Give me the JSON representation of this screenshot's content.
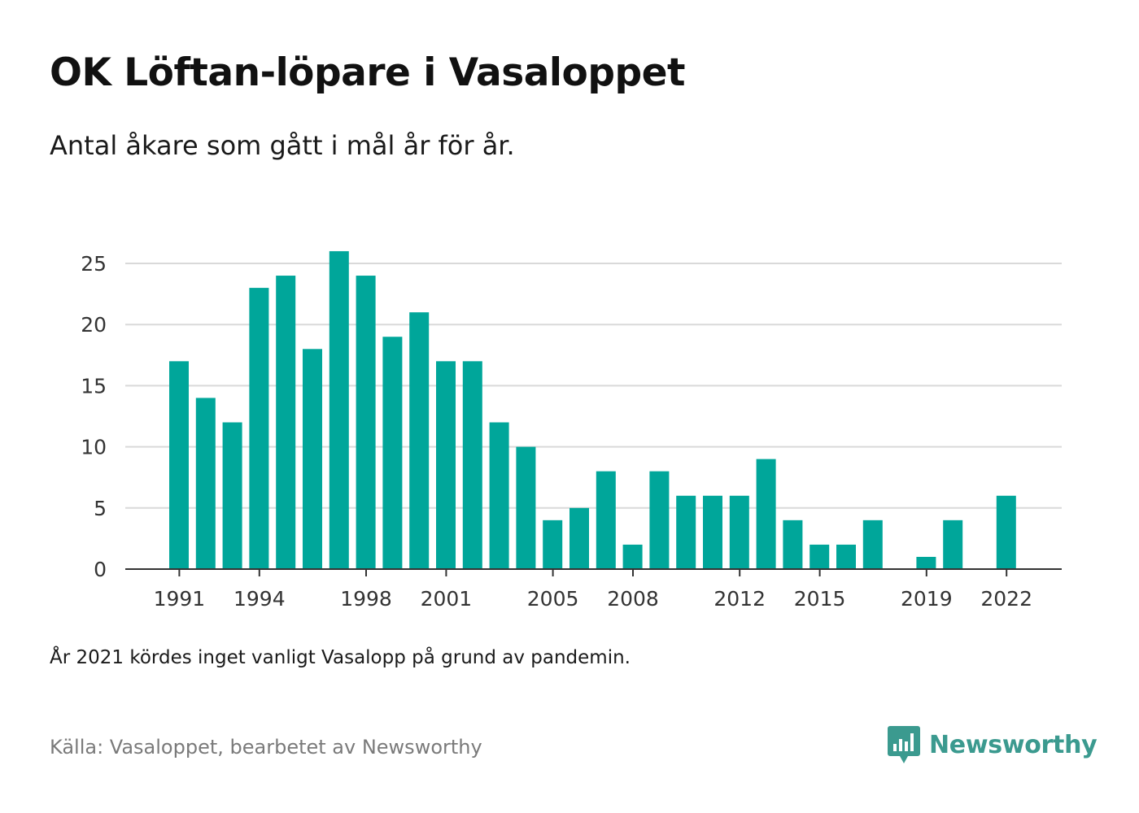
{
  "title": "OK Löftan-löpare i Vasaloppet",
  "subtitle": "Antal åkare som gått i mål år för år.",
  "note": "År 2021 kördes inget vanligt Vasalopp på grund av pandemin.",
  "source": "Källa: Vasaloppet, bearbetet av Newsworthy",
  "brand": {
    "name": "Newsworthy",
    "icon": "newsworthy-logo-icon",
    "color": "#3b9a8f"
  },
  "colors": {
    "bar": "#00a69a",
    "grid": "#d9d9d9",
    "axis": "#333333"
  },
  "chart_data": {
    "type": "bar",
    "title": "OK Löftan-löpare i Vasaloppet",
    "xlabel": "",
    "ylabel": "",
    "categories": [
      1991,
      1992,
      1993,
      1994,
      1995,
      1996,
      1997,
      1998,
      1999,
      2000,
      2001,
      2002,
      2003,
      2004,
      2005,
      2006,
      2007,
      2008,
      2009,
      2010,
      2011,
      2012,
      2013,
      2014,
      2015,
      2016,
      2017,
      2018,
      2019,
      2020,
      2021,
      2022
    ],
    "values": [
      17,
      14,
      12,
      23,
      24,
      18,
      26,
      24,
      19,
      21,
      17,
      17,
      12,
      10,
      4,
      5,
      8,
      2,
      8,
      6,
      6,
      6,
      9,
      4,
      2,
      2,
      4,
      0,
      1,
      4,
      0,
      6
    ],
    "ylim": [
      0,
      26
    ],
    "yticks": [
      0,
      5,
      10,
      15,
      20,
      25
    ],
    "xtick_labels": [
      "1991",
      "1994",
      "1998",
      "2001",
      "2005",
      "2008",
      "2012",
      "2015",
      "2019",
      "2022"
    ],
    "grid": true
  }
}
